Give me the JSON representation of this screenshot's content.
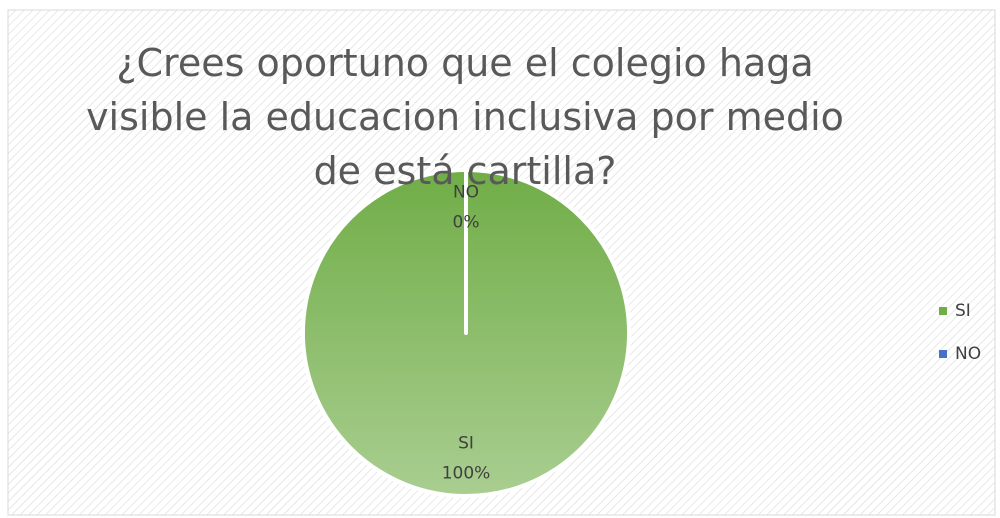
{
  "chart_data": {
    "type": "pie",
    "title": "¿Crees oportuno que el colegio haga visible la educacion inclusiva por medio de está cartilla?",
    "categories": [
      "SI",
      "NO"
    ],
    "values": [
      100,
      0
    ],
    "value_labels": [
      "100%",
      "0%"
    ],
    "colors": [
      "#70ad47",
      "#4472c4"
    ],
    "legend": "right"
  }
}
